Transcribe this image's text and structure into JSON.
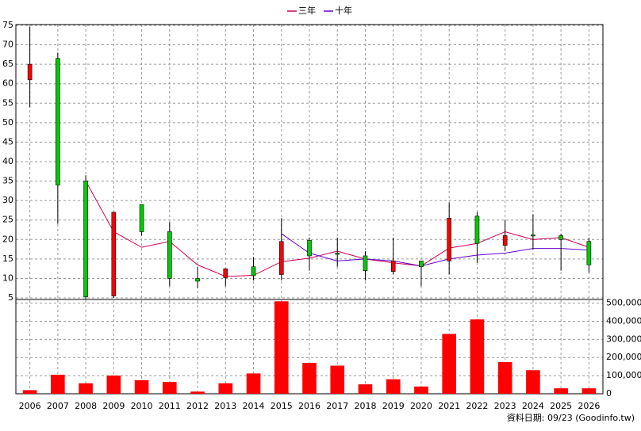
{
  "chart_data": {
    "type": "candlestick",
    "categories": [
      "2006",
      "2007",
      "2008",
      "2009",
      "2010",
      "2011",
      "2012",
      "2013",
      "2014",
      "2015",
      "2016",
      "2017",
      "2018",
      "2019",
      "2020",
      "2021",
      "2022",
      "2023",
      "2024",
      "2025",
      "2026"
    ],
    "open": [
      61,
      66.5,
      35,
      5.5,
      29,
      22,
      10,
      10.2,
      13,
      11,
      19.8,
      16.5,
      15.8,
      11.8,
      14.5,
      14.5,
      26,
      18.5,
      21.2,
      21,
      19.5
    ],
    "high": [
      74.6,
      68,
      36.5,
      27,
      29,
      24.5,
      13,
      12.5,
      15.5,
      25.5,
      20.5,
      20.5,
      17,
      20.5,
      14.5,
      29.5,
      27,
      25,
      26.5,
      21.5,
      20.5
    ],
    "low": [
      54,
      24,
      4.5,
      5,
      21,
      8,
      7.5,
      8,
      9.5,
      9.5,
      12,
      13,
      9.5,
      11,
      8,
      11,
      14,
      17,
      17.5,
      12,
      11.5
    ],
    "close": [
      65,
      34,
      5.3,
      27,
      22,
      10,
      9.3,
      12.5,
      10.7,
      19.5,
      15.8,
      16.2,
      12,
      14.5,
      13,
      25.5,
      19,
      21,
      21,
      20,
      13.5
    ],
    "up_color": "#ff0000",
    "down_color": "#00cc00",
    "series": [
      {
        "name": "三年",
        "color": "#cc0055",
        "values": [
          null,
          null,
          35,
          22,
          18,
          19.5,
          13.5,
          10.5,
          10.8,
          14.3,
          15.2,
          17,
          15,
          14,
          13.2,
          17.8,
          19,
          22,
          20,
          20.5,
          18
        ]
      },
      {
        "name": "十年",
        "color": "#6600cc",
        "values": [
          null,
          null,
          null,
          null,
          null,
          null,
          null,
          null,
          null,
          21.5,
          16.5,
          14.5,
          15,
          14.5,
          13.2,
          15,
          16,
          16.5,
          17.7,
          17.7,
          17.3
        ]
      }
    ],
    "ylim": [
      4.6,
      75.2
    ],
    "yticks": [
      5,
      10,
      15,
      20,
      25,
      30,
      35,
      40,
      45,
      50,
      55,
      60,
      65,
      70,
      75
    ],
    "grid": true,
    "volume": {
      "type": "bar",
      "color": "#ff0000",
      "values": [
        20000,
        105000,
        58000,
        100000,
        75000,
        65000,
        12000,
        58000,
        112000,
        510000,
        170000,
        155000,
        52000,
        80000,
        40000,
        330000,
        410000,
        175000,
        130000,
        30000,
        30000
      ],
      "ylim": [
        0,
        520000
      ],
      "yticks": [
        0,
        {
          "value": 100000,
          "label": "100,000"
        },
        {
          "value": 200000,
          "label": "200,000"
        },
        {
          "value": 300000,
          "label": "300,000"
        },
        {
          "value": 400000,
          "label": "400,000"
        },
        {
          "value": 500000,
          "label": "500,000"
        }
      ]
    },
    "footer": "資料日期: 09/23 (Goodinfo.tw)"
  }
}
